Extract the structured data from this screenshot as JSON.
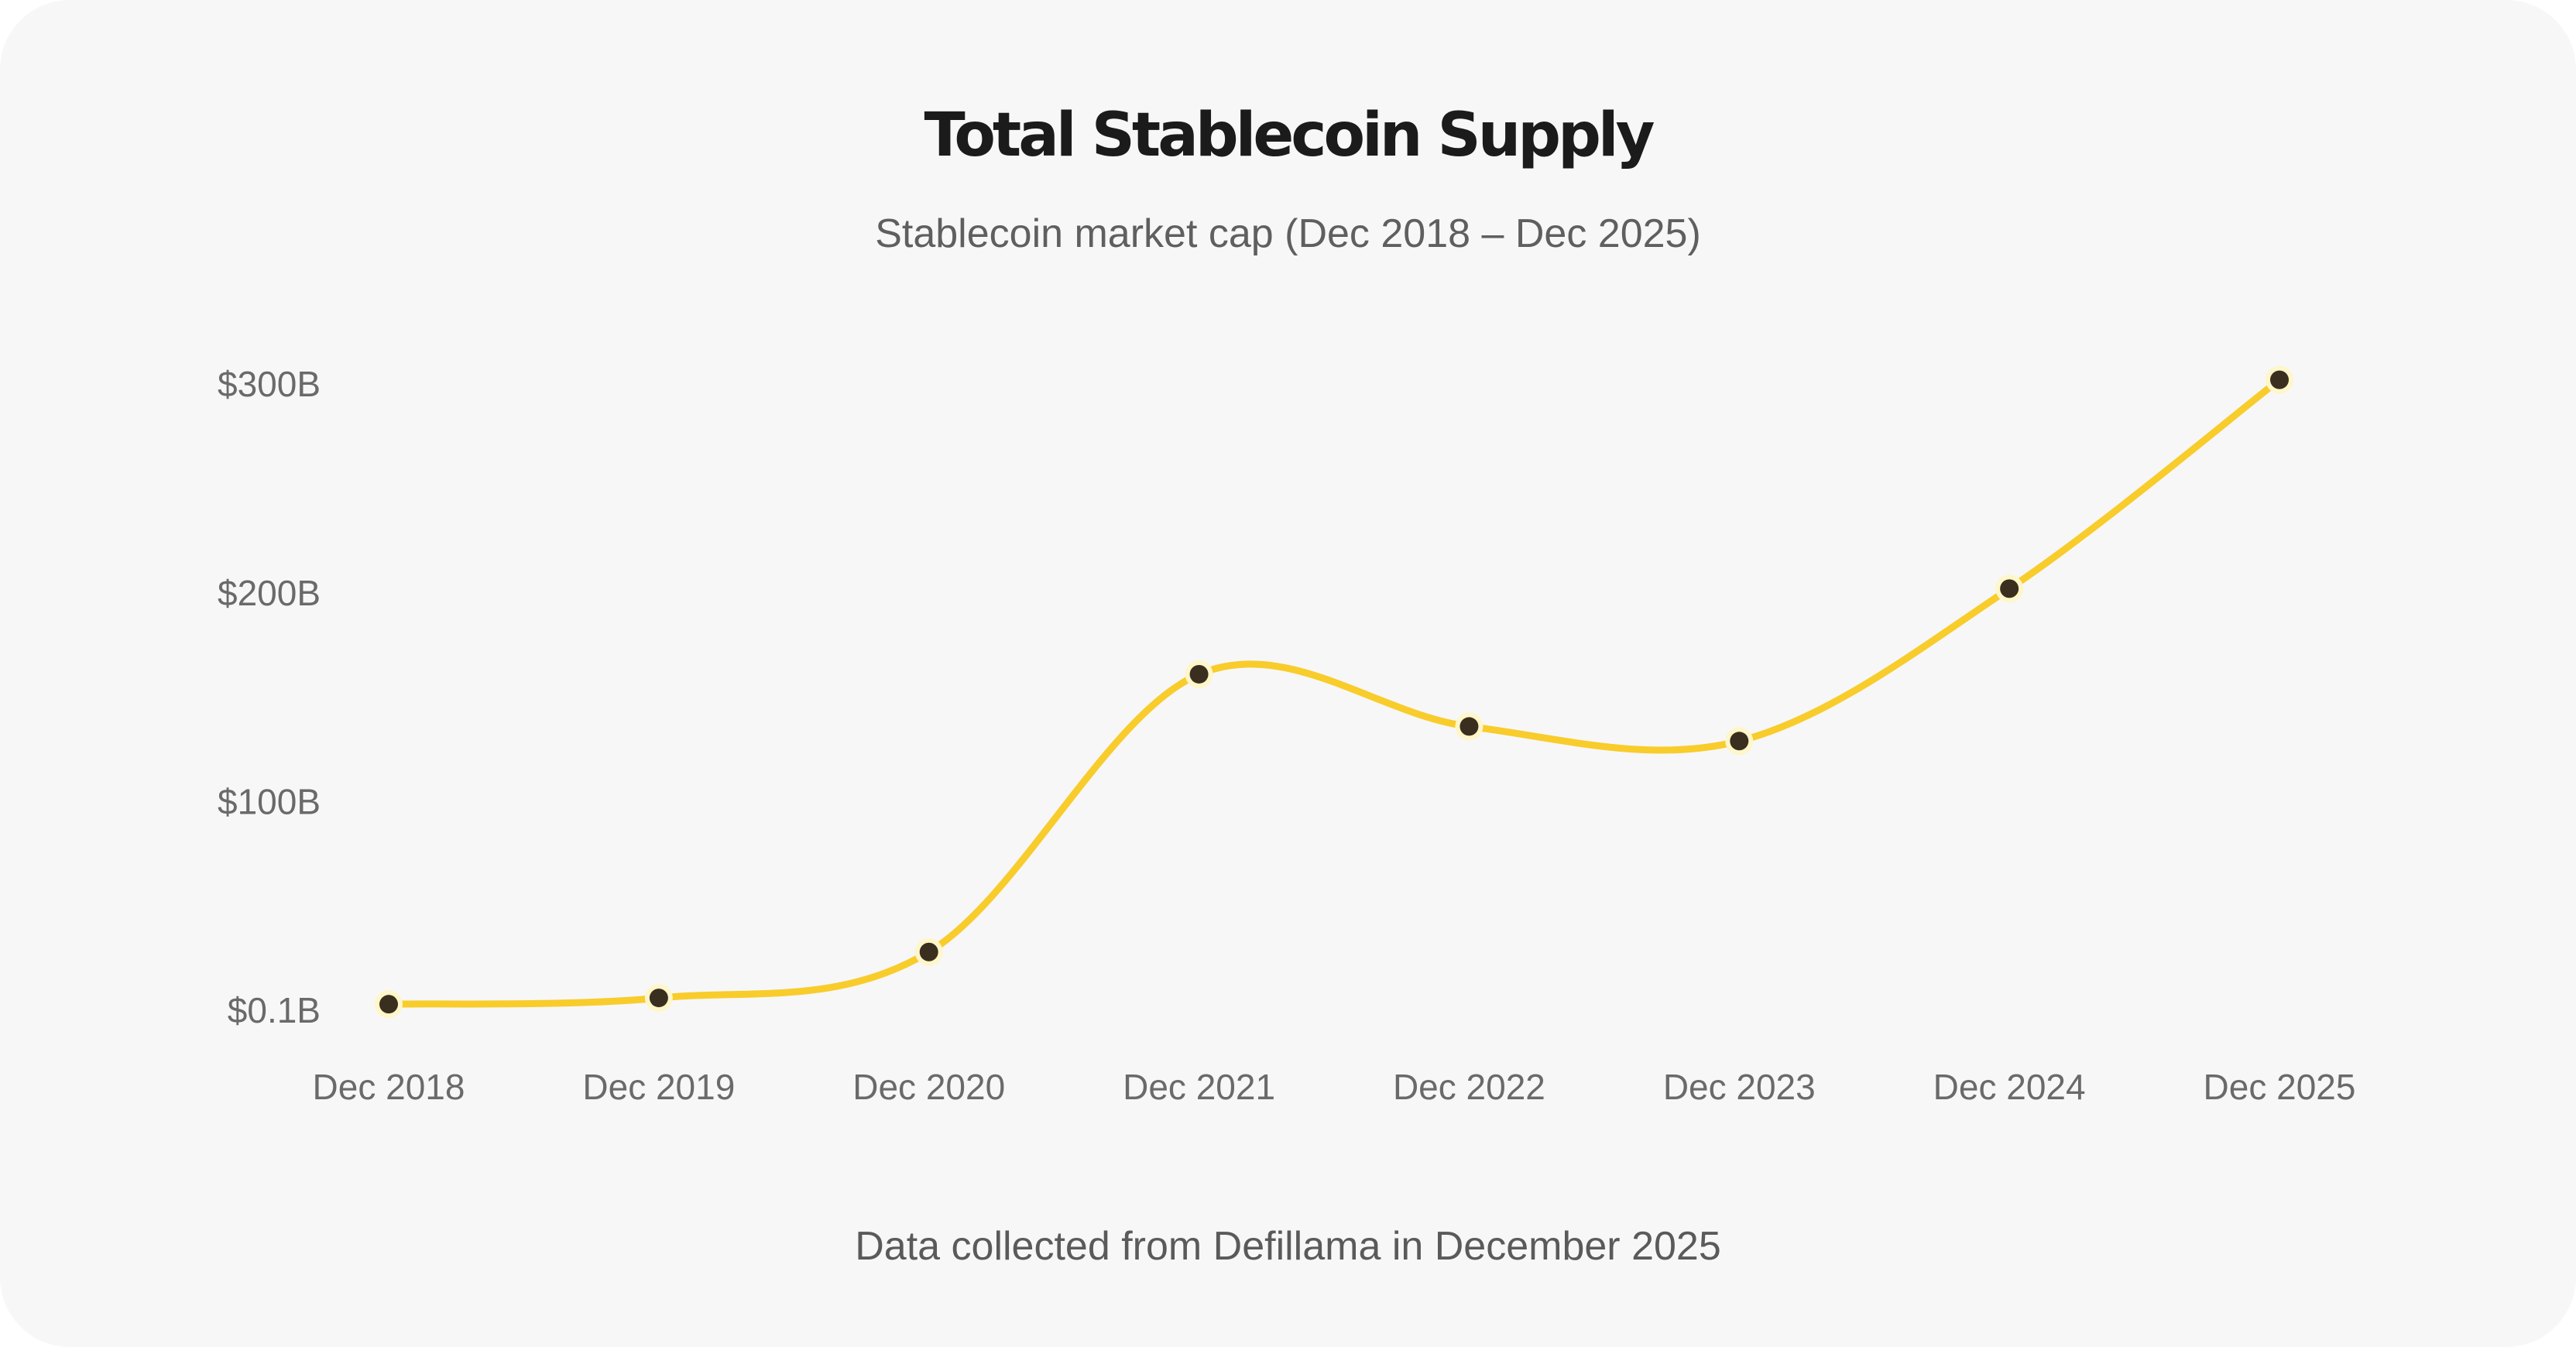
{
  "title": "Total Stablecoin Supply",
  "subtitle": "Stablecoin market cap (Dec 2018 – Dec 2025)",
  "footer": "Data collected from Defillama in December 2025",
  "colors": {
    "background": "#f7f7f7",
    "line": "#f8cc2b",
    "marker_fill": "#3a2f1e",
    "marker_ring": "#fff6c9"
  },
  "chart_data": {
    "type": "line",
    "title": "Total Stablecoin Supply",
    "subtitle": "Stablecoin market cap (Dec 2018 – Dec 2025)",
    "xlabel": "",
    "ylabel": "",
    "categories": [
      "Dec 2018",
      "Dec 2019",
      "Dec 2020",
      "Dec 2021",
      "Dec 2022",
      "Dec 2023",
      "Dec 2024",
      "Dec 2025"
    ],
    "series": [
      {
        "values": [
          3,
          6,
          28,
          161,
          136,
          129,
          202,
          302
        ]
      }
    ],
    "y_ticks": [
      0.1,
      100,
      200,
      300
    ],
    "y_tick_labels": [
      "$0.1B",
      "$100B",
      "$200B",
      "$300B"
    ],
    "y_unit": "billion USD",
    "ylim": [
      0.1,
      300
    ],
    "grid": false,
    "legend": "none",
    "markers": true,
    "smooth": true
  }
}
